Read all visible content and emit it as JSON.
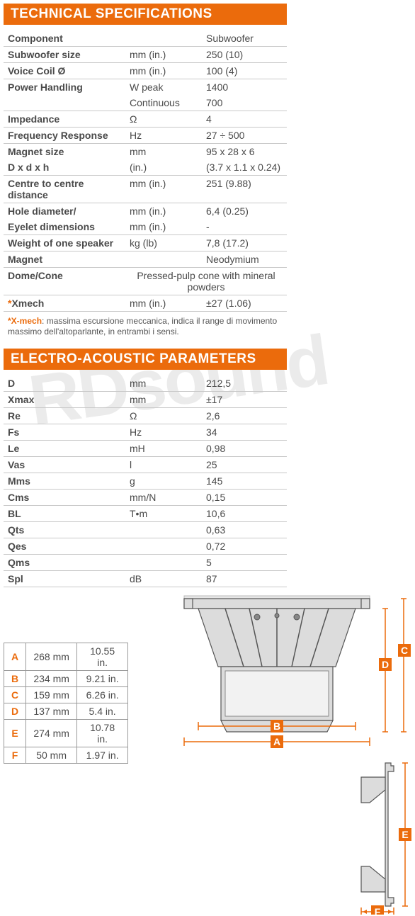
{
  "tech_header": "TECHNICAL SPECIFICATIONS",
  "tech_rows": [
    {
      "c1": "Component",
      "c2": "",
      "c3": "Subwoofer",
      "bold": true
    },
    {
      "c1": "Subwoofer size",
      "c2": "mm (in.)",
      "c3": "250 (10)",
      "bold": true
    },
    {
      "c1": "Voice Coil Ø",
      "c2": "mm (in.)",
      "c3": "100 (4)",
      "bold": true
    },
    {
      "c1": "Power Handling",
      "c2": "W peak",
      "c3": "1400",
      "bold": true,
      "noborder": true
    },
    {
      "c1": "",
      "c2": "Continuous",
      "c3": "700",
      "bold": false
    },
    {
      "c1": "Impedance",
      "c2": "Ω",
      "c3": "4",
      "bold": true
    },
    {
      "c1": "Frequency Response",
      "c2": "Hz",
      "c3": "27 ÷ 500",
      "bold": true
    },
    {
      "c1": "Magnet size",
      "c2": "mm",
      "c3": "95 x 28 x 6",
      "bold": true,
      "noborder": true
    },
    {
      "c1": "D x d x h",
      "c2": "(in.)",
      "c3": "(3.7 x 1.1 x 0.24)",
      "bold": true
    },
    {
      "c1": "Centre to centre distance",
      "c2": "mm (in.)",
      "c3": "251 (9.88)",
      "bold": true
    },
    {
      "c1": "Hole diameter/",
      "c2": "mm (in.)",
      "c3": "6,4 (0.25)",
      "bold": true,
      "noborder": true
    },
    {
      "c1": "Eyelet dimensions",
      "c2": "mm (in.)",
      "c3": "-",
      "bold": true
    },
    {
      "c1": "Weight of one speaker",
      "c2": "kg (lb)",
      "c3": "7,8 (17.2)",
      "bold": true
    },
    {
      "c1": "Magnet",
      "c2": "",
      "c3": "Neodymium",
      "bold": true
    },
    {
      "c1": "Dome/Cone",
      "c2": "",
      "c3": "",
      "bold": true,
      "span": "Pressed-pulp cone with mineral powders"
    },
    {
      "c1": "*Xmech",
      "c2": "mm (in.)",
      "c3": "±27 (1.06)",
      "bold": true,
      "asterisk": true
    }
  ],
  "footnote_label": "*X-mech",
  "footnote_text": ": massima escursione meccanica, indica il range di movimento massimo dell'altoparlante, in entrambi i sensi.",
  "electro_header": "ELECTRO-ACOUSTIC PARAMETERS",
  "electro_rows": [
    {
      "c1": "D",
      "c2": "mm",
      "c3": "212,5"
    },
    {
      "c1": "Xmax",
      "c2": "mm",
      "c3": "±17"
    },
    {
      "c1": "Re",
      "c2": "Ω",
      "c3": "2,6"
    },
    {
      "c1": "Fs",
      "c2": "Hz",
      "c3": "34"
    },
    {
      "c1": "Le",
      "c2": "mH",
      "c3": "0,98"
    },
    {
      "c1": "Vas",
      "c2": "l",
      "c3": "25"
    },
    {
      "c1": "Mms",
      "c2": "g",
      "c3": "145"
    },
    {
      "c1": "Cms",
      "c2": "mm/N",
      "c3": "0,15"
    },
    {
      "c1": "BL",
      "c2": "T•m",
      "c3": "10,6"
    },
    {
      "c1": "Qts",
      "c2": "",
      "c3": "0,63"
    },
    {
      "c1": "Qes",
      "c2": "",
      "c3": "0,72"
    },
    {
      "c1": "Qms",
      "c2": "",
      "c3": "5"
    },
    {
      "c1": "Spl",
      "c2": "dB",
      "c3": "87"
    }
  ],
  "dims": [
    {
      "letter": "A",
      "mm": "268 mm",
      "in": "10.55 in."
    },
    {
      "letter": "B",
      "mm": "234 mm",
      "in": "9.21 in."
    },
    {
      "letter": "C",
      "mm": "159 mm",
      "in": "6.26 in."
    },
    {
      "letter": "D",
      "mm": "137 mm",
      "in": "5.4 in."
    },
    {
      "letter": "E",
      "mm": "274 mm",
      "in": "10.78 in."
    },
    {
      "letter": "F",
      "mm": "50 mm",
      "in": "1.97 in."
    }
  ],
  "colors": {
    "accent": "#eb6b0c",
    "border": "#c8c8c8",
    "text": "#4a4a4a"
  },
  "watermark": "RDsound"
}
